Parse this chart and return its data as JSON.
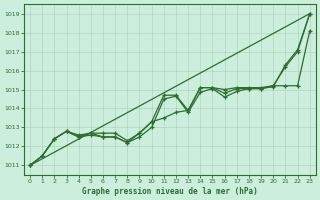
{
  "title": "Graphe pression niveau de la mer (hPa)",
  "bg_color": "#cceedd",
  "line_color": "#2d6e2d",
  "xlim": [
    -0.5,
    23.5
  ],
  "ylim": [
    1010.5,
    1019.5
  ],
  "yticks": [
    1011,
    1012,
    1013,
    1014,
    1015,
    1016,
    1017,
    1018,
    1019
  ],
  "xticks": [
    0,
    1,
    2,
    3,
    4,
    5,
    6,
    7,
    8,
    9,
    10,
    11,
    12,
    13,
    14,
    15,
    16,
    17,
    18,
    19,
    20,
    21,
    22,
    23
  ],
  "series_with_markers": [
    [
      1011.0,
      1011.5,
      1012.4,
      1012.8,
      1012.6,
      1012.7,
      1012.7,
      1012.7,
      1012.3,
      1012.7,
      1013.3,
      1014.7,
      1014.7,
      1013.9,
      1015.1,
      1015.1,
      1014.8,
      1015.05,
      1015.05,
      1015.05,
      1015.15,
      1016.3,
      1017.1,
      1019.0
    ],
    [
      1011.0,
      1011.5,
      1012.4,
      1012.8,
      1012.5,
      1012.7,
      1012.5,
      1012.5,
      1012.2,
      1012.5,
      1013.0,
      1014.5,
      1014.65,
      1013.8,
      1014.85,
      1015.05,
      1014.6,
      1014.9,
      1015.05,
      1015.05,
      1015.2,
      1015.2,
      1015.2,
      1018.1
    ],
    [
      1011.0,
      1011.5,
      1012.4,
      1012.8,
      1012.5,
      1012.6,
      1012.5,
      1012.5,
      1012.2,
      1012.7,
      1013.3,
      1013.5,
      1013.8,
      1013.9,
      1015.1,
      1015.1,
      1015.0,
      1015.1,
      1015.1,
      1015.1,
      1015.2,
      1016.2,
      1017.0,
      1019.0
    ]
  ],
  "series_smooth": [
    [
      0,
      1011.0
    ],
    [
      23,
      1019.0
    ]
  ]
}
